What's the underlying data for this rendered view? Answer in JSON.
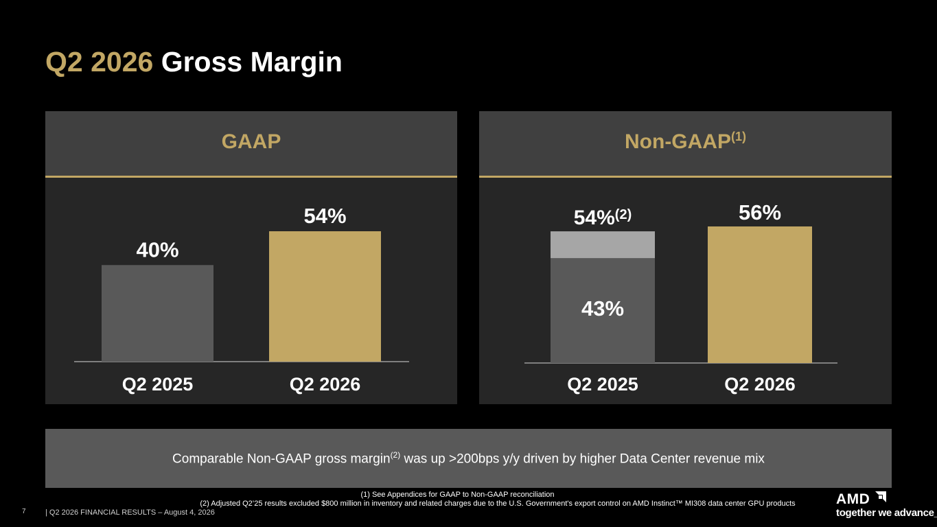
{
  "title": {
    "accent": "Q2 2026",
    "main": "Gross Margin"
  },
  "panels": {
    "gaap": {
      "label": "GAAP"
    },
    "nongaap": {
      "label": "Non-GAAP",
      "sup": "(1)"
    }
  },
  "chart_data": [
    {
      "type": "bar",
      "title": "GAAP",
      "categories": [
        "Q2 2025",
        "Q2 2026"
      ],
      "values": [
        40,
        54
      ],
      "value_labels": [
        "40%",
        "54%"
      ],
      "colors": [
        "#595959",
        "#c2a764"
      ],
      "ylim": [
        0,
        54
      ]
    },
    {
      "type": "bar",
      "title": "Non-GAAP",
      "categories": [
        "Q2 2025",
        "Q2 2026"
      ],
      "series": [
        {
          "values": [
            43,
            56
          ]
        },
        {
          "values": [
            11,
            0
          ]
        }
      ],
      "totals": [
        54,
        56
      ],
      "value_labels": [
        "43%",
        "56%"
      ],
      "total_label": "54%",
      "total_label_sup": "(2)",
      "colors": [
        "#595959",
        "#a6a6a6",
        "#c2a764"
      ],
      "ylim": [
        0,
        56
      ]
    }
  ],
  "note": {
    "pre": "Comparable Non-GAAP gross margin",
    "sup": "(2)",
    "post": " was up >200bps y/y driven by higher Data Center revenue mix"
  },
  "footnotes": {
    "fn1": "(1) See Appendices for GAAP to Non-GAAP reconciliation",
    "fn2": "(2) Adjusted Q2’25 results excluded $800 million in inventory and related charges due to the U.S. Government's export control on AMD Instinct™ MI308 data center GPU products"
  },
  "footer": {
    "page": "7",
    "text": "|   Q2 2026 FINANCIAL RESULTS – August 4, 2026"
  },
  "logo": {
    "brand": "AMD",
    "tagline": "together we advance_"
  }
}
